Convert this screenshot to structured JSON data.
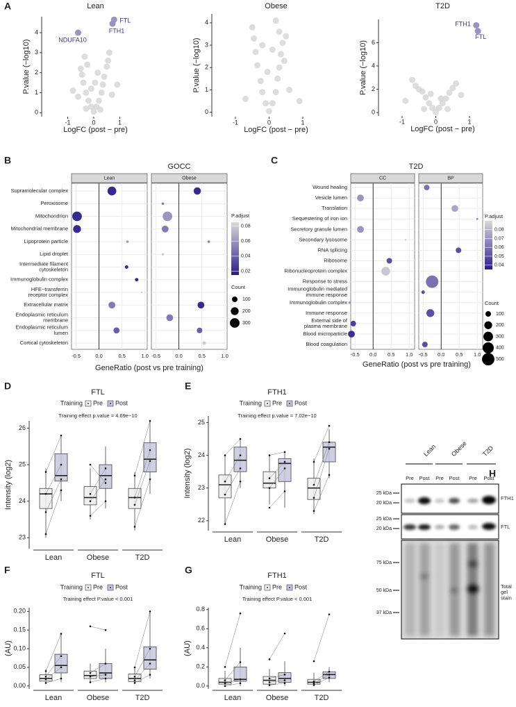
{
  "panel_labels": [
    "A",
    "B",
    "C",
    "D",
    "E",
    "F",
    "G",
    "H"
  ],
  "chart_data": [
    {
      "type": "scatter",
      "title": "Lean",
      "xlabel": "LogFC (post − pre)",
      "ylabel": "P.value (−log10)",
      "xlim": [
        -2.0,
        1.6
      ],
      "xticks": [
        -1,
        0,
        1
      ],
      "ylim": [
        -0.2,
        4.8
      ],
      "yticks": [
        0,
        1,
        2,
        3,
        4
      ],
      "color": "#cfcfcf",
      "x": [
        0,
        0.1,
        -0.1,
        0.2,
        -0.2,
        0.3,
        -0.3,
        0.35,
        -0.4,
        0.4,
        -0.45,
        0.5,
        -0.5,
        0.55,
        -0.35,
        0.6,
        -0.1,
        0.05,
        0.15,
        -0.25,
        -0.8,
        0.9,
        -0.6,
        0.7,
        0.25,
        -0.3
      ],
      "y": [
        0.05,
        0.3,
        0.3,
        0.6,
        0.6,
        1.0,
        1.0,
        1.4,
        1.5,
        1.8,
        1.9,
        2.3,
        2.2,
        2.6,
        2.8,
        3.0,
        1.2,
        1.5,
        2.0,
        2.4,
        1.1,
        1.4,
        0.8,
        0.9,
        0.15,
        0.2
      ],
      "highlight": {
        "color": "#9893c0",
        "label_color": "#3b3389",
        "labels": [
          "NDUFA10",
          "FTH1",
          "FTL"
        ],
        "x": [
          -0.6,
          0.72,
          0.78
        ],
        "y": [
          4.0,
          4.45,
          4.65
        ]
      }
    },
    {
      "type": "scatter",
      "title": "Obese",
      "xlabel": "LogFC (post − pre)",
      "ylabel": "P.value (−log10)",
      "xlim": [
        -1.7,
        1.7
      ],
      "xticks": [
        -1,
        0,
        1
      ],
      "ylim": [
        -0.2,
        4.4
      ],
      "yticks": [
        0,
        1,
        2,
        3,
        4
      ],
      "color": "#cfcfcf",
      "x": [
        0,
        0.1,
        -0.1,
        0.2,
        -0.2,
        0.25,
        -0.25,
        0.3,
        -0.35,
        0.35,
        -0.4,
        0.4,
        -0.45,
        0.3,
        -0.5,
        0.2,
        0.45,
        0.6,
        0.9,
        -0.7,
        -0.05,
        0.1,
        -0.2,
        0.5
      ],
      "y": [
        0.05,
        0.4,
        0.4,
        0.9,
        0.9,
        1.5,
        1.4,
        2.0,
        2.1,
        2.6,
        2.7,
        3.1,
        3.3,
        3.6,
        3.8,
        4.1,
        2.3,
        1.0,
        0.5,
        0.6,
        1.8,
        2.8,
        3.0,
        3.4
      ]
    },
    {
      "type": "scatter",
      "title": "T2D",
      "xlabel": "LogFC (post − pre)",
      "ylabel": "P.value (−log10)",
      "xlim": [
        -1.7,
        1.7
      ],
      "xticks": [
        -1,
        0,
        1
      ],
      "ylim": [
        -0.3,
        8
      ],
      "yticks": [
        0,
        2,
        4,
        6
      ],
      "color": "#cfcfcf",
      "x": [
        0,
        0.1,
        -0.1,
        0.2,
        -0.2,
        0.3,
        -0.3,
        0.4,
        -0.4,
        0.5,
        -0.5,
        0.6,
        -0.6,
        -0.7,
        0.75,
        -0.9,
        0.15,
        -0.15,
        0.35,
        -0.35
      ],
      "y": [
        0.05,
        0.4,
        0.4,
        0.8,
        0.8,
        1.2,
        1.3,
        1.7,
        1.8,
        2.1,
        2.0,
        2.5,
        2.3,
        2.8,
        1.5,
        1.0,
        1.2,
        1.6,
        0.3,
        0.3
      ],
      "highlight": {
        "color": "#9893c0",
        "label_color": "#3b3389",
        "labels": [
          "FTH1",
          "FTL"
        ],
        "x": [
          1.2,
          1.25
        ],
        "y": [
          7.5,
          7.0
        ]
      }
    },
    {
      "type": "dot",
      "title": "GOCC",
      "xlabel": "GeneRatio (post vs pre training)",
      "xlim": [
        -0.6,
        1.05
      ],
      "xticks": [
        -0.5,
        {
          "value": 0,
          "label": "0.0"
        },
        0.5,
        {
          "value": 1,
          "label": "1.0"
        }
      ],
      "categories": [
        "Supramolecular complex",
        "Peroxisome",
        "Mitochondrion",
        "Mitochondrial membrane",
        "Lipoprotein particle",
        "Lipid droplet",
        "Intermediate filament\ncytoskeleton",
        "Immunoglobulin complex",
        "HFE−transferrin\nreceptor complex",
        "Extracellular matrix",
        "Endoplasmic reticulum\nmembrane",
        "Endoplasmic reticulum\nlumen",
        "Cortical cytoskeleton"
      ],
      "facets": [
        {
          "name": "Lean",
          "x": [
            0.28,
            null,
            -0.48,
            -0.48,
            0.62,
            null,
            0.6,
            0.82,
            0.93,
            0.28,
            null,
            0.38,
            null
          ],
          "count": [
            250,
            null,
            300,
            200,
            20,
            null,
            40,
            40,
            10,
            150,
            null,
            120,
            null
          ],
          "padj": [
            0.02,
            null,
            0.02,
            0.02,
            0.06,
            null,
            0.02,
            0.02,
            0.08,
            0.05,
            null,
            0.04,
            null
          ]
        },
        {
          "name": "Obese",
          "x": [
            0.4,
            -0.35,
            -0.25,
            -0.3,
            0.65,
            -0.35,
            null,
            null,
            null,
            0.48,
            -0.2,
            0.45,
            0.55
          ],
          "count": [
            170,
            20,
            300,
            150,
            20,
            20,
            null,
            null,
            null,
            150,
            150,
            100,
            40
          ],
          "padj": [
            0.02,
            0.05,
            0.06,
            0.05,
            0.05,
            0.08,
            null,
            null,
            null,
            0.02,
            0.05,
            0.04,
            0.08
          ]
        }
      ],
      "clim": [
        0.015,
        0.085
      ],
      "low_color": "#2b1b8f",
      "high_color": "#d9d9d9",
      "color_title": "P.adjust",
      "color_ticks": [
        0.08,
        0.06,
        0.04,
        0.02
      ],
      "size_title": "Count",
      "size_ticks": [
        100,
        200,
        300
      ]
    },
    {
      "type": "dot",
      "title": "T2D",
      "xlabel": "GeneRatio (post vs pre training)",
      "xlim": [
        -0.62,
        1.15
      ],
      "xticks": [
        -0.5,
        {
          "value": 0,
          "label": "0.0"
        },
        0.5,
        {
          "value": 1,
          "label": "1.0"
        }
      ],
      "categories": [
        "Wound healing",
        "Vesicle lumen",
        "Translation",
        "Sequestering of iron ion",
        "Secretory granule lumen",
        "Secondary lysosome",
        "RNA splicing",
        "Ribosome",
        "Ribonucleoprotein complex",
        "Response to stress",
        "Immunoglobulin mediated\nimmune response",
        "Immunoglobulin complex",
        "Immune response",
        "External side of\nplasma membrane",
        "Blood microparticle",
        "Blood coagulation"
      ],
      "facets": [
        {
          "name": "CC",
          "x": [
            null,
            -0.35,
            null,
            null,
            -0.35,
            0.9,
            null,
            0.45,
            0.35,
            null,
            null,
            -0.65,
            null,
            -0.55,
            -0.6,
            null
          ],
          "count": [
            null,
            150,
            null,
            null,
            150,
            10,
            null,
            100,
            250,
            null,
            null,
            20,
            null,
            100,
            150,
            null
          ],
          "padj": [
            null,
            0.07,
            null,
            null,
            0.07,
            0.085,
            null,
            0.05,
            0.085,
            null,
            null,
            0.07,
            null,
            0.045,
            0.04,
            null
          ]
        },
        {
          "name": "BP",
          "x": [
            -0.4,
            null,
            0.38,
            1.0,
            null,
            null,
            0.48,
            null,
            null,
            -0.25,
            -0.5,
            null,
            -0.3,
            null,
            null,
            -0.45
          ],
          "count": [
            100,
            null,
            150,
            10,
            null,
            null,
            100,
            null,
            null,
            500,
            40,
            null,
            200,
            null,
            null,
            100
          ],
          "padj": [
            0.06,
            null,
            0.075,
            0.06,
            null,
            null,
            0.05,
            null,
            null,
            0.06,
            0.05,
            null,
            0.05,
            null,
            null,
            0.05
          ]
        }
      ],
      "clim": [
        0.035,
        0.09
      ],
      "low_color": "#2b1b8f",
      "high_color": "#d9d9d9",
      "color_title": "P.adjust",
      "color_ticks": [
        0.08,
        0.07,
        0.06,
        0.05,
        0.04
      ],
      "size_title": "Count",
      "size_ticks": [
        100,
        200,
        300,
        400,
        500
      ]
    },
    {
      "type": "box",
      "title": "FTL",
      "subtitle": "Training effect p.value = 4.69e−10",
      "ylabel": "Intensity (log2)",
      "legend_title": "Training",
      "ylim": [
        22.7,
        26.2
      ],
      "yticks": [
        23,
        24,
        25,
        26
      ],
      "categories": [
        "Lean",
        "Obese",
        "T2D"
      ],
      "series": [
        {
          "name": "Pre",
          "color": "#efefef",
          "boxes": [
            [
              23.0,
              23.8,
              24.2,
              24.35,
              24.9
            ],
            [
              23.5,
              23.9,
              24.1,
              24.4,
              24.9
            ],
            [
              23.2,
              23.8,
              24.1,
              24.35,
              24.8
            ]
          ],
          "points": [
            [
              23.1,
              23.7,
              24.2,
              24.8
            ],
            [
              23.6,
              24.0,
              24.2,
              25.0
            ],
            [
              23.3,
              23.9,
              24.1,
              24.7
            ]
          ]
        },
        {
          "name": "Post",
          "color": "#c8c6dc",
          "boxes": [
            [
              24.0,
              24.55,
              24.7,
              25.3,
              25.8
            ],
            [
              23.8,
              24.35,
              24.7,
              25.0,
              25.5
            ],
            [
              24.2,
              24.8,
              25.15,
              25.6,
              26.2
            ]
          ],
          "points": [
            [
              24.3,
              24.6,
              25.0,
              25.8
            ],
            [
              24.0,
              24.6,
              24.9,
              24.5
            ],
            [
              24.6,
              25.1,
              25.4,
              26.2
            ]
          ]
        }
      ]
    },
    {
      "type": "box",
      "title": "FTH1",
      "subtitle": "Training effect p.value = 7.02e−10",
      "ylabel": "Intensity (log2)",
      "legend_title": "Training",
      "ylim": [
        21.7,
        25.2
      ],
      "yticks": [
        22,
        23,
        24,
        25
      ],
      "categories": [
        "Lean",
        "Obese",
        "T2D"
      ],
      "series": [
        {
          "name": "Pre",
          "color": "#efefef",
          "boxes": [
            [
              21.9,
              22.7,
              23.1,
              23.4,
              24.0
            ],
            [
              22.5,
              23.0,
              23.15,
              23.5,
              24.0
            ],
            [
              22.2,
              22.65,
              23.0,
              23.3,
              23.9
            ]
          ],
          "points": [
            [
              21.9,
              22.8,
              23.2,
              24.0
            ],
            [
              22.4,
              23.0,
              23.3,
              24.0
            ],
            [
              22.3,
              22.7,
              23.1,
              23.8
            ]
          ]
        },
        {
          "name": "Post",
          "color": "#c8c6dc",
          "boxes": [
            [
              23.0,
              23.5,
              23.85,
              24.25,
              24.5
            ],
            [
              22.4,
              23.2,
              23.75,
              23.9,
              24.1
            ],
            [
              23.3,
              23.8,
              24.25,
              24.4,
              24.8
            ]
          ],
          "points": [
            [
              23.2,
              23.6,
              24.0,
              24.5
            ],
            [
              22.9,
              23.6,
              23.8,
              24.1
            ],
            [
              23.4,
              24.2,
              24.4,
              24.9
            ]
          ]
        }
      ]
    },
    {
      "type": "box",
      "title": "FTL",
      "subtitle": "Training effect P.value < 0.001",
      "ylabel": "(AU)",
      "legend_title": "Training",
      "ylim": [
        -0.008,
        0.21
      ],
      "yticks": [
        {
          "value": 0,
          "label": "0.00"
        },
        0.05,
        {
          "value": 0.1,
          "label": "0.10"
        },
        0.15,
        {
          "value": 0.2,
          "label": "0.20"
        }
      ],
      "categories": [
        "Lean",
        "Obese",
        "T2D"
      ],
      "series": [
        {
          "name": "Pre",
          "color": "#efefef",
          "boxes": [
            [
              0.005,
              0.013,
              0.02,
              0.03,
              0.045
            ],
            [
              0.01,
              0.02,
              0.028,
              0.04,
              0.06
            ],
            [
              0.005,
              0.012,
              0.02,
              0.032,
              0.05
            ]
          ],
          "points": [
            [
              0.008,
              0.018,
              0.025,
              0.04
            ],
            [
              0.01,
              0.025,
              0.035,
              0.16
            ],
            [
              0.008,
              0.015,
              0.025,
              0.05
            ]
          ]
        },
        {
          "name": "Post",
          "color": "#c8c6dc",
          "boxes": [
            [
              0.01,
              0.035,
              0.055,
              0.085,
              0.14
            ],
            [
              0.01,
              0.02,
              0.035,
              0.06,
              0.1
            ],
            [
              0.02,
              0.045,
              0.07,
              0.105,
              0.2
            ]
          ],
          "points": [
            [
              0.02,
              0.05,
              0.08,
              0.14
            ],
            [
              0.02,
              0.03,
              0.06,
              0.15
            ],
            [
              0.03,
              0.06,
              0.1,
              0.2
            ]
          ]
        }
      ]
    },
    {
      "type": "box",
      "title": "FTH1",
      "subtitle": "Training effect P.value < 0.001",
      "ylabel": "(AU)",
      "legend_title": "Training",
      "ylim": [
        -0.03,
        0.82
      ],
      "yticks": [
        {
          "value": 0,
          "label": "0.0"
        },
        0.2,
        0.4,
        0.6,
        0.8
      ],
      "categories": [
        "Lean",
        "Obese",
        "T2D"
      ],
      "series": [
        {
          "name": "Pre",
          "color": "#efefef",
          "boxes": [
            [
              0,
              0.02,
              0.04,
              0.08,
              0.16
            ],
            [
              0,
              0.02,
              0.06,
              0.1,
              0.18
            ],
            [
              0,
              0.02,
              0.04,
              0.07,
              0.14
            ]
          ],
          "points": [
            [
              0.0,
              0.03,
              0.06,
              0.2
            ],
            [
              0.01,
              0.04,
              0.08,
              0.28
            ],
            [
              0.01,
              0.03,
              0.05,
              0.26
            ]
          ]
        },
        {
          "name": "Post",
          "color": "#c8c6dc",
          "boxes": [
            [
              0,
              0.05,
              0.07,
              0.2,
              0.4
            ],
            [
              0,
              0.04,
              0.08,
              0.14,
              0.26
            ],
            [
              0.04,
              0.08,
              0.12,
              0.15,
              0.2
            ]
          ],
          "points": [
            [
              0.03,
              0.07,
              0.25,
              0.76
            ],
            [
              0.03,
              0.06,
              0.12,
              0.55
            ],
            [
              0.09,
              0.12,
              0.15,
              0.75
            ]
          ]
        }
      ]
    }
  ],
  "blot": {
    "groups": [
      "Lean",
      "Obese",
      "T2D"
    ],
    "lanes": [
      "Pre",
      "Post",
      "Pre",
      "Post",
      "Pre",
      "Post"
    ],
    "markers": [
      "25 kDa",
      "20 kDa",
      "25 kDa",
      "20 kDa",
      "75 kDa",
      "50 kDa",
      "37 kDa"
    ],
    "proteins": [
      "FTH1",
      "FTL",
      "Total\ngel\nstain"
    ]
  }
}
